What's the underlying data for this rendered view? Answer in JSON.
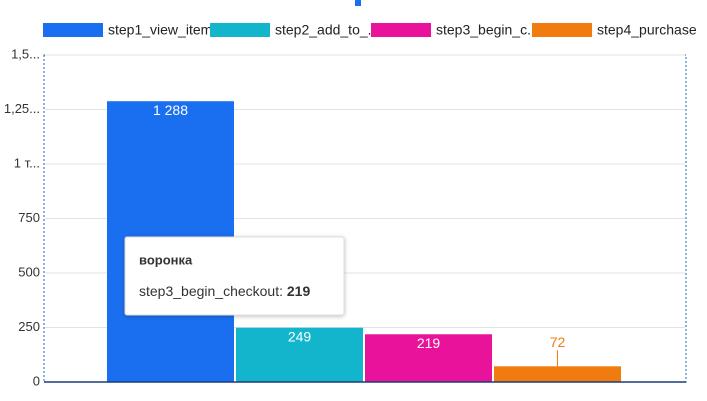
{
  "chart_data": {
    "type": "bar",
    "categories": [
      null
    ],
    "series": [
      {
        "name": "step1_view_item",
        "color": "#1a6ff0",
        "values": [
          1288
        ],
        "value_labels": [
          "1 288"
        ]
      },
      {
        "name": "step2_add_to_...",
        "color": "#12b5cb",
        "values": [
          249
        ]
      },
      {
        "name": "step3_begin_c...",
        "color": "#e8139a",
        "values": [
          219
        ]
      },
      {
        "name": "step4_purchase",
        "color": "#f07b0e",
        "values": [
          72
        ]
      }
    ],
    "ylim": [
      0,
      1500
    ],
    "yticks": [
      0,
      250,
      500,
      750,
      {
        "value": 1000,
        "label": "1 т..."
      },
      {
        "value": 1250,
        "label": "1,25..."
      },
      {
        "value": 1500,
        "label": "1,5..."
      }
    ],
    "grid": true,
    "legend": "top",
    "tooltip": {
      "title": "воронка",
      "series_name": "step3_begin_checkout:",
      "value": 219
    }
  }
}
